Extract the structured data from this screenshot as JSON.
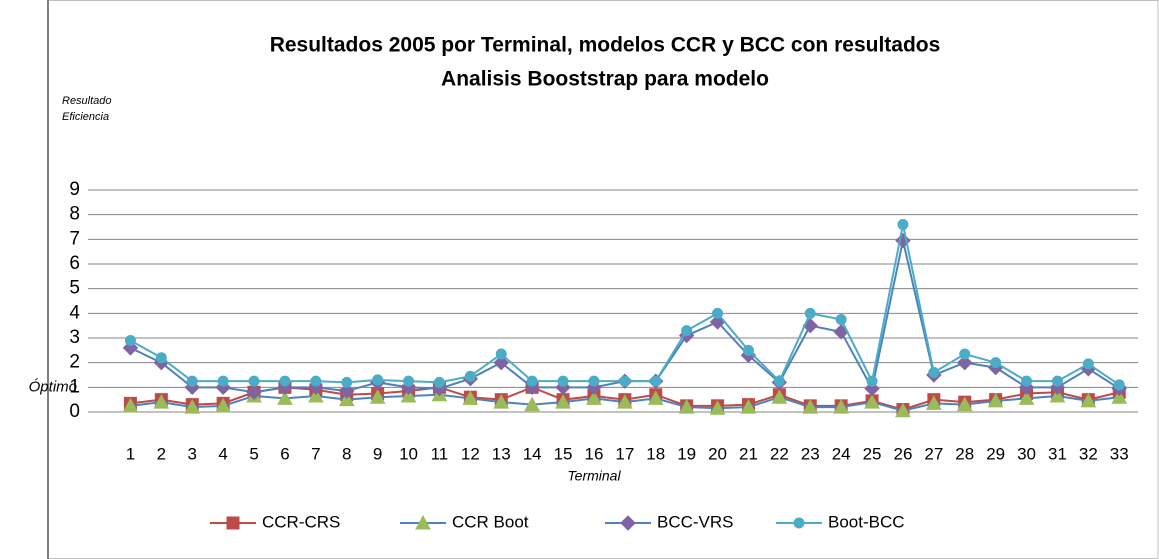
{
  "chart_data": {
    "type": "line",
    "title": [
      "Resultados 2005 por Terminal, modelos CCR y BCC con resultados",
      "Analisis Booststrap para modelo"
    ],
    "y_label": [
      "Resultado",
      "Eficiencia"
    ],
    "x_label": "Terminal",
    "annotation": {
      "text": "Óptimo",
      "y": 1,
      "color": "#ff0000"
    },
    "categories": [
      "1",
      "2",
      "3",
      "4",
      "5",
      "6",
      "7",
      "8",
      "9",
      "10",
      "11",
      "12",
      "13",
      "14",
      "15",
      "16",
      "17",
      "18",
      "19",
      "20",
      "21",
      "22",
      "23",
      "24",
      "25",
      "26",
      "27",
      "28",
      "29",
      "30",
      "31",
      "32",
      "33"
    ],
    "ylim": [
      0,
      9
    ],
    "yticks": [
      0,
      1,
      2,
      3,
      4,
      5,
      6,
      7,
      8,
      9
    ],
    "grid": true,
    "legend": "bottom",
    "series": [
      {
        "name": "CCR-CRS",
        "color": "#be4b48",
        "marker": "square",
        "marker_color": "#be4b48",
        "values": [
          0.35,
          0.5,
          0.3,
          0.35,
          0.8,
          1.0,
          0.9,
          0.7,
          0.75,
          0.85,
          1.0,
          0.6,
          0.5,
          1.0,
          0.5,
          0.65,
          0.5,
          0.7,
          0.25,
          0.25,
          0.3,
          0.7,
          0.25,
          0.25,
          0.45,
          0.1,
          0.5,
          0.4,
          0.5,
          0.75,
          0.8,
          0.5,
          0.8
        ]
      },
      {
        "name": "CCR Boot",
        "color": "#4f81bd",
        "marker": "triangle",
        "marker_color": "#9bbb59",
        "values": [
          0.25,
          0.4,
          0.2,
          0.25,
          0.65,
          0.55,
          0.65,
          0.5,
          0.6,
          0.65,
          0.7,
          0.55,
          0.4,
          0.3,
          0.4,
          0.55,
          0.4,
          0.55,
          0.2,
          0.15,
          0.2,
          0.6,
          0.2,
          0.2,
          0.4,
          0.05,
          0.35,
          0.3,
          0.45,
          0.55,
          0.65,
          0.45,
          0.6
        ]
      },
      {
        "name": "BCC-VRS",
        "color": "#4f81bd",
        "marker": "diamond",
        "marker_color": "#8064a2",
        "values": [
          2.6,
          2.0,
          1.0,
          1.0,
          0.8,
          1.0,
          1.0,
          0.85,
          1.2,
          1.0,
          0.95,
          1.35,
          2.0,
          1.0,
          1.0,
          1.0,
          1.25,
          1.25,
          3.1,
          3.65,
          2.3,
          1.2,
          3.5,
          3.25,
          0.95,
          6.95,
          1.5,
          2.0,
          1.8,
          1.0,
          1.0,
          1.75,
          0.95
        ]
      },
      {
        "name": "Boot-BCC",
        "color": "#4bacc6",
        "marker": "circle",
        "marker_color": "#4bacc6",
        "values": [
          2.9,
          2.2,
          1.25,
          1.25,
          1.25,
          1.25,
          1.25,
          1.2,
          1.3,
          1.25,
          1.2,
          1.45,
          2.35,
          1.25,
          1.25,
          1.25,
          1.25,
          1.25,
          3.3,
          4.0,
          2.5,
          1.25,
          4.0,
          3.75,
          1.25,
          7.6,
          1.6,
          2.35,
          2.0,
          1.25,
          1.25,
          1.95,
          1.1
        ]
      }
    ]
  }
}
